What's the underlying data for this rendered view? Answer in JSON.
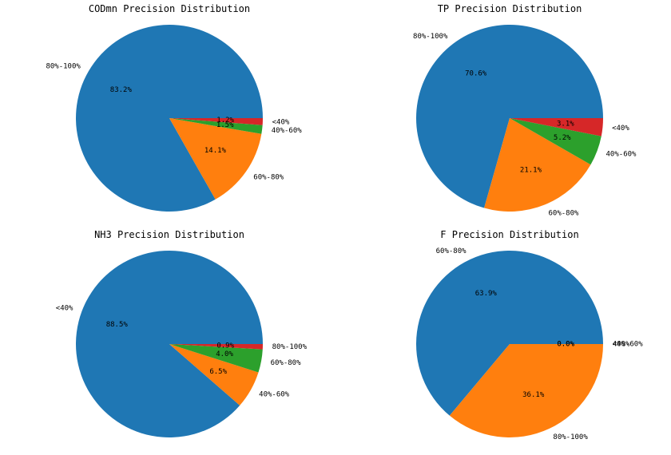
{
  "chart_data": [
    {
      "type": "pie",
      "title": "CODmn Precision Distribution",
      "slices": [
        {
          "label": "80%-100%",
          "value": 83.2,
          "pct_label": "83.2%",
          "color": "#1f77b4"
        },
        {
          "label": "60%-80%",
          "value": 14.1,
          "pct_label": "14.1%",
          "color": "#ff7f0e"
        },
        {
          "label": "40%-60%",
          "value": 1.5,
          "pct_label": "1.5%",
          "color": "#2ca02c"
        },
        {
          "label": "<40%",
          "value": 1.2,
          "pct_label": "1.2%",
          "color": "#d62728"
        }
      ]
    },
    {
      "type": "pie",
      "title": "TP Precision Distribution",
      "slices": [
        {
          "label": "80%-100%",
          "value": 70.6,
          "pct_label": "70.6%",
          "color": "#1f77b4"
        },
        {
          "label": "60%-80%",
          "value": 21.1,
          "pct_label": "21.1%",
          "color": "#ff7f0e"
        },
        {
          "label": "40%-60%",
          "value": 5.2,
          "pct_label": "5.2%",
          "color": "#2ca02c"
        },
        {
          "label": "<40%",
          "value": 3.1,
          "pct_label": "3.1%",
          "color": "#d62728"
        }
      ]
    },
    {
      "type": "pie",
      "title": "NH3 Precision Distribution",
      "slices": [
        {
          "label": "<40%",
          "value": 88.5,
          "pct_label": "88.5%",
          "color": "#1f77b4"
        },
        {
          "label": "40%-60%",
          "value": 6.5,
          "pct_label": "6.5%",
          "color": "#ff7f0e"
        },
        {
          "label": "60%-80%",
          "value": 4.0,
          "pct_label": "4.0%",
          "color": "#2ca02c"
        },
        {
          "label": "80%-100%",
          "value": 0.9,
          "pct_label": "0.9%",
          "color": "#d62728"
        }
      ]
    },
    {
      "type": "pie",
      "title": "F Precision Distribution",
      "slices": [
        {
          "label": "60%-80%",
          "value": 63.9,
          "pct_label": "63.9%",
          "color": "#1f77b4"
        },
        {
          "label": "80%-100%",
          "value": 36.1,
          "pct_label": "36.1%",
          "color": "#ff7f0e"
        },
        {
          "label": "<40%",
          "value": 0.0,
          "pct_label": "0.0%",
          "color": "#2ca02c"
        },
        {
          "label": "40%-60%",
          "value": 0.0,
          "pct_label": "0.0%",
          "color": "#d62728"
        }
      ]
    }
  ]
}
